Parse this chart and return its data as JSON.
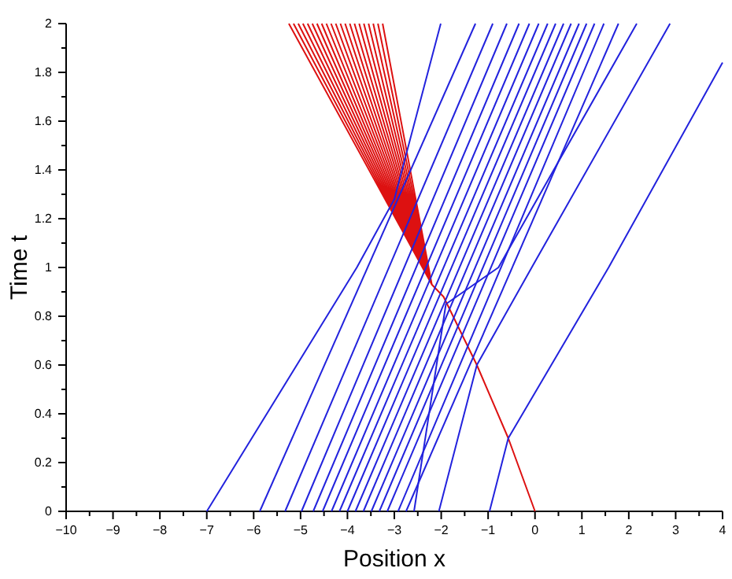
{
  "chart_data": {
    "type": "line",
    "xlabel": "Position x",
    "ylabel": "Time t",
    "xlim": [
      -10,
      4
    ],
    "ylim": [
      0,
      2
    ],
    "xticks": [
      -10,
      {
        "value": -9.5,
        "label": null
      },
      -9,
      {
        "value": -8.5,
        "label": null
      },
      -8,
      {
        "value": -7.5,
        "label": null
      },
      -7,
      {
        "value": -6.5,
        "label": null
      },
      -6,
      {
        "value": -5.5,
        "label": null
      },
      -5,
      {
        "value": -4.5,
        "label": null
      },
      -4,
      {
        "value": -3.5,
        "label": null
      },
      -3,
      {
        "value": -2.5,
        "label": null
      },
      -2,
      {
        "value": -1.5,
        "label": null
      },
      -1,
      {
        "value": -0.5,
        "label": null
      },
      0,
      {
        "value": 0.5,
        "label": null
      },
      1,
      {
        "value": 1.5,
        "label": null
      },
      2,
      {
        "value": 2.5,
        "label": null
      },
      3,
      {
        "value": 3.5,
        "label": null
      },
      4
    ],
    "yticks": [
      0,
      {
        "value": 0.1,
        "label": null
      },
      0.2,
      {
        "value": 0.3,
        "label": null
      },
      0.4,
      {
        "value": 0.5,
        "label": null
      },
      0.6,
      {
        "value": 0.7,
        "label": null
      },
      0.8,
      {
        "value": 0.9,
        "label": null
      },
      1,
      {
        "value": 1.1,
        "label": null
      },
      1.2,
      {
        "value": 1.3,
        "label": null
      },
      1.4,
      {
        "value": 1.5,
        "label": null
      },
      1.6,
      {
        "value": 1.7,
        "label": null
      },
      1.8,
      {
        "value": 1.9,
        "label": null
      },
      2
    ],
    "grid": false,
    "marker": "none",
    "line_style": "solid",
    "series": [
      {
        "color": "#2222dd",
        "x": [
          -7,
          -3.8,
          -3.0,
          -2.01
        ],
        "values": [
          0,
          1.0,
          1.28,
          2
        ]
      },
      {
        "color": "#2222dd",
        "x": [
          -5.87,
          -1.27
        ],
        "values": [
          0,
          2
        ]
      },
      {
        "color": "#2222dd",
        "x": [
          -5.33,
          -0.9
        ],
        "values": [
          0,
          2
        ]
      },
      {
        "color": "#2222dd",
        "x": [
          -4.98,
          -0.6
        ],
        "values": [
          0,
          2
        ]
      },
      {
        "color": "#2222dd",
        "x": [
          -4.73,
          -0.34
        ],
        "values": [
          0,
          2
        ]
      },
      {
        "color": "#2222dd",
        "x": [
          -4.53,
          -0.12
        ],
        "values": [
          0,
          2
        ]
      },
      {
        "color": "#2222dd",
        "x": [
          -4.34,
          0.08
        ],
        "values": [
          0,
          2
        ]
      },
      {
        "color": "#2222dd",
        "x": [
          -4.17,
          0.27
        ],
        "values": [
          0,
          2
        ]
      },
      {
        "color": "#2222dd",
        "x": [
          -4.0,
          0.44
        ],
        "values": [
          0,
          2
        ]
      },
      {
        "color": "#2222dd",
        "x": [
          -3.83,
          0.61
        ],
        "values": [
          0,
          2
        ]
      },
      {
        "color": "#2222dd",
        "x": [
          -3.66,
          0.77
        ],
        "values": [
          0,
          2
        ]
      },
      {
        "color": "#2222dd",
        "x": [
          -3.49,
          0.94
        ],
        "values": [
          0,
          2
        ]
      },
      {
        "color": "#2222dd",
        "x": [
          -3.32,
          1.1
        ],
        "values": [
          0,
          2
        ]
      },
      {
        "color": "#2222dd",
        "x": [
          -3.15,
          1.27
        ],
        "values": [
          0,
          2
        ]
      },
      {
        "color": "#2222dd",
        "x": [
          -2.92,
          1.47
        ],
        "values": [
          0,
          2
        ]
      },
      {
        "color": "#2222dd",
        "x": [
          -2.75,
          1.78
        ],
        "values": [
          0,
          2
        ]
      },
      {
        "color": "#2222dd",
        "x": [
          -2.58,
          -1.9,
          -0.78,
          2.17
        ],
        "values": [
          0,
          0.85,
          1,
          2
        ]
      },
      {
        "color": "#2222dd",
        "x": [
          -2.05,
          -1.24,
          -0.07,
          2.88
        ],
        "values": [
          0,
          0.6,
          1,
          2
        ]
      },
      {
        "color": "#2222dd",
        "x": [
          -0.97,
          -0.57,
          1.57,
          4
        ],
        "values": [
          0,
          0.3,
          1,
          1.84
        ]
      },
      {
        "color": "#dd1111",
        "x": [
          0,
          -0.57,
          -1.24,
          -1.95,
          -2.2,
          -5.25,
          null,
          -2.2,
          -5.15,
          null,
          -2.2,
          -5.05,
          null,
          -2.2,
          -4.95,
          null,
          -2.2,
          -4.85,
          null,
          -2.2,
          -4.75,
          null,
          -2.2,
          -4.65,
          null,
          -2.2,
          -4.55,
          null,
          -2.2,
          -4.45,
          null,
          -2.2,
          -4.35,
          null,
          -2.2,
          -4.25,
          null,
          -2.2,
          -4.15,
          null,
          -2.2,
          -4.05,
          null,
          -2.2,
          -3.95,
          null,
          -2.2,
          -3.85,
          null,
          -2.2,
          -3.75,
          null,
          -2.2,
          -3.65,
          null,
          -2.2,
          -3.55,
          null,
          -2.2,
          -3.45,
          null,
          -2.2,
          -3.35,
          null,
          -2.2,
          -3.25
        ],
        "values": [
          0,
          0.3,
          0.6,
          0.88,
          0.93,
          2,
          null,
          0.93,
          2,
          null,
          0.93,
          2,
          null,
          0.93,
          2,
          null,
          0.93,
          2,
          null,
          0.93,
          2,
          null,
          0.93,
          2,
          null,
          0.93,
          2,
          null,
          0.93,
          2,
          null,
          0.93,
          2,
          null,
          0.93,
          2,
          null,
          0.93,
          2,
          null,
          0.93,
          2,
          null,
          0.93,
          2,
          null,
          0.93,
          2,
          null,
          0.93,
          2,
          null,
          0.93,
          2,
          null,
          0.93,
          2,
          null,
          0.93,
          2,
          null,
          0.93,
          2,
          null,
          0.93,
          2
        ]
      }
    ]
  }
}
